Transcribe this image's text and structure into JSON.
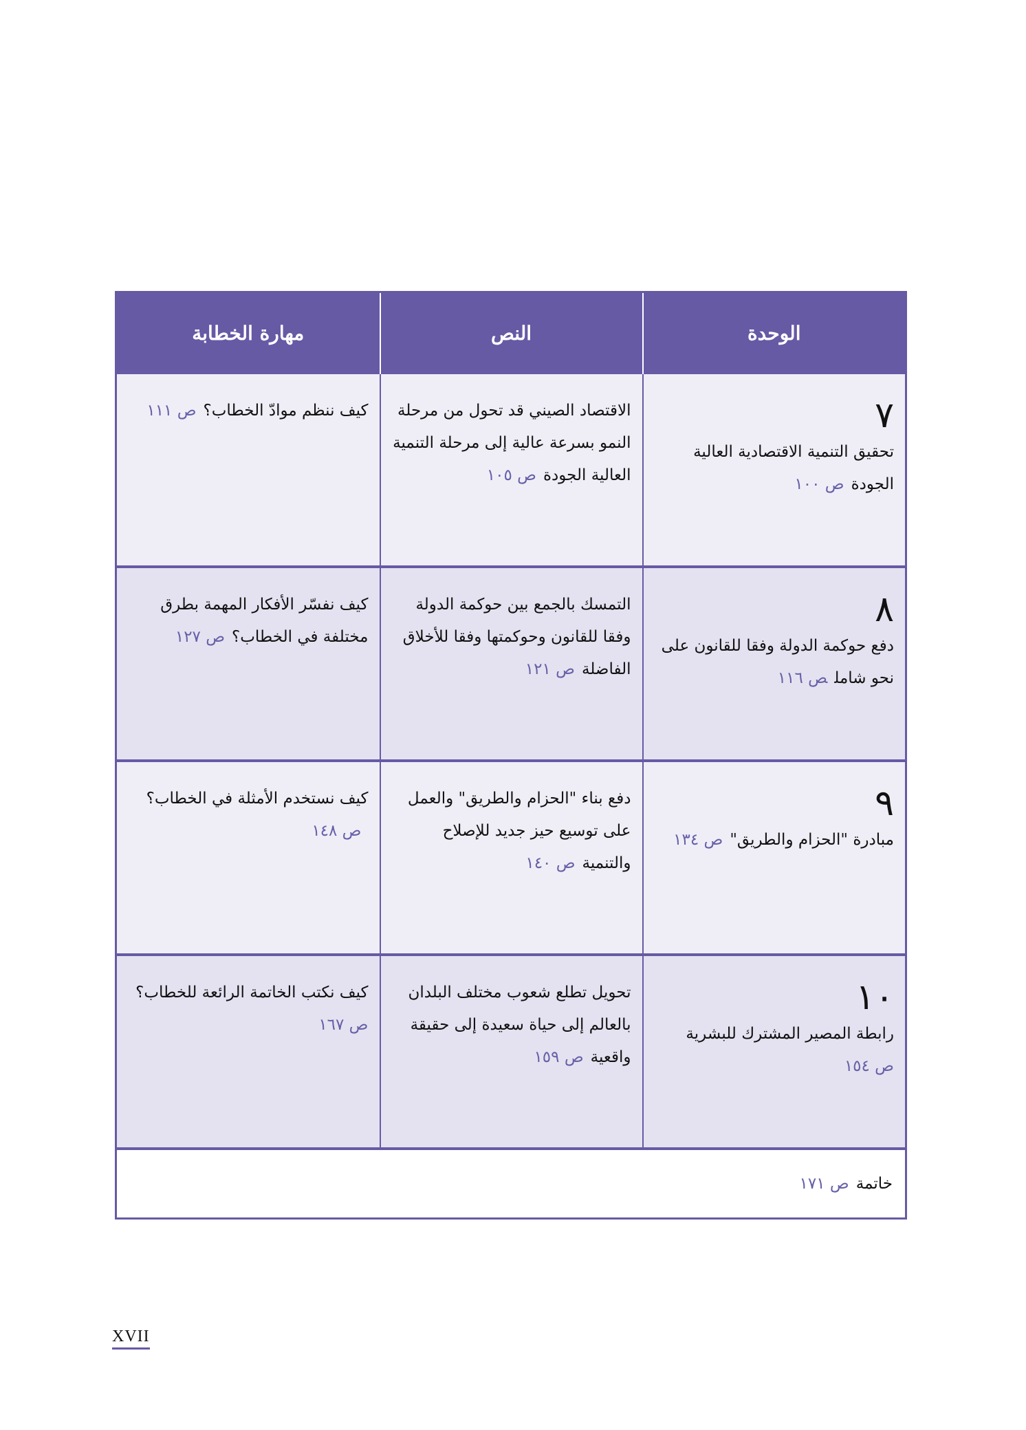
{
  "header": {
    "unit": "الوحدة",
    "text": "النص",
    "skill": "مهارة الخطابة"
  },
  "rows": [
    {
      "num": "٧",
      "unit": "تحقيق التنمية الاقتصادية العالية الجودة",
      "unit_page": "ص ١٠٠",
      "text": "الاقتصاد الصيني قد تحول من مرحلة النمو بسرعة عالية إلى مرحلة التنمية العالية الجودة",
      "text_page": "ص ١٠٥",
      "skill": "كيف ننظم موادّ الخطاب؟",
      "skill_page": "ص ١١١"
    },
    {
      "num": "٨",
      "unit": "دفع حوكمة الدولة وفقا للقانون على نحو شامل",
      "unit_page": "ص ١١٦",
      "text": "التمسك بالجمع بين حوكمة الدولة وفقا للقانون وحوكمتها وفقا للأخلاق الفاضلة",
      "text_page": "ص ١٢١",
      "skill": "كيف نفسّر الأفكار المهمة بطرق مختلفة في الخطاب؟",
      "skill_page": "ص ١٢٧"
    },
    {
      "num": "٩",
      "unit": "مبادرة \"الحزام والطريق\"",
      "unit_page": "ص ١٣٤",
      "text": "دفع بناء \"الحزام والطريق\" والعمل على توسيع حيز جديد للإصلاح والتنمية",
      "text_page": "ص ١٤٠",
      "skill": "كيف نستخدم الأمثلة في الخطاب؟",
      "skill_page": "ص ١٤٨"
    },
    {
      "num": "١٠",
      "unit": "رابطة المصير المشترك للبشرية",
      "unit_page": "ص ١٥٤",
      "text": "تحويل تطلع شعوب مختلف البلدان بالعالم إلى حياة سعيدة إلى حقيقة واقعية",
      "text_page": "ص ١٥٩",
      "skill": "كيف نكتب الخاتمة الرائعة للخطاب؟",
      "skill_page": "ص ١٦٧"
    }
  ],
  "closing": {
    "label": "خاتمة",
    "page": "ص ١٧١"
  },
  "footer": {
    "page_number": "XVII"
  },
  "colors": {
    "accent": "#665aa5",
    "row_light": "#efeef7",
    "row_dark": "#e4e2f0",
    "page_ref": "#6660a8"
  }
}
